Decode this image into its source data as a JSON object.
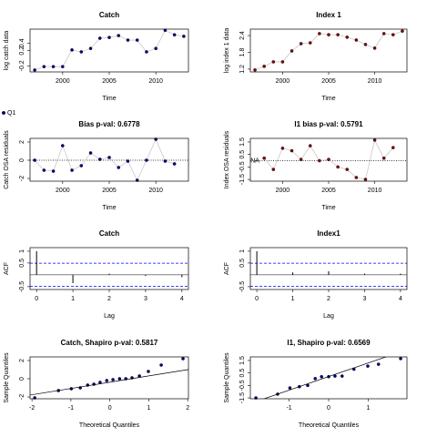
{
  "chart_data": [
    {
      "type": "line",
      "title": "Catch",
      "x_label": "Time",
      "y_label": "log catch data",
      "x": [
        1997,
        1998,
        1999,
        2000,
        2001,
        2002,
        2003,
        2004,
        2005,
        2006,
        2007,
        2008,
        2009,
        2010,
        2011,
        2012,
        2013
      ],
      "series": [
        {
          "color": "#00008b",
          "values": [
            -0.31,
            -0.22,
            -0.22,
            -0.22,
            0.22,
            0.17,
            0.26,
            0.53,
            0.55,
            0.6,
            0.48,
            0.48,
            0.17,
            0.26,
            0.74,
            0.62,
            0.58
          ]
        }
      ],
      "line_color": "#c8c8c8",
      "xlim": [
        1996.5,
        2013.5
      ],
      "ylim": [
        -0.36,
        0.77
      ],
      "xticks": [
        2000,
        2005,
        2010
      ],
      "yticks": [
        -0.2,
        0.2,
        0.4
      ]
    },
    {
      "type": "line",
      "title": "Index 1",
      "x_label": "Time",
      "y_label": "log index 1 data",
      "x": [
        1997,
        1998,
        1999,
        2000,
        2001,
        2002,
        2003,
        2004,
        2005,
        2006,
        2007,
        2008,
        2009,
        2010,
        2011,
        2012,
        2013
      ],
      "series": [
        {
          "color": "#8b0000",
          "values": [
            1.17,
            1.3,
            1.46,
            1.46,
            1.85,
            2.11,
            2.14,
            2.47,
            2.43,
            2.43,
            2.34,
            2.24,
            2.08,
            1.95,
            2.47,
            2.43,
            2.56
          ]
        }
      ],
      "line_color": "#c8c8c8",
      "xlim": [
        1996.5,
        2013.5
      ],
      "ylim": [
        1.1,
        2.63
      ],
      "xticks": [
        2000,
        2005,
        2010
      ],
      "yticks": [
        1.2,
        1.8,
        2.4
      ]
    },
    {
      "type": "line",
      "title": "Bias p-val: 0.6778",
      "title_color": "#228b22",
      "x_label": "Time",
      "y_label": "Catch OSA residuals",
      "x": [
        1997,
        1998,
        1999,
        2000,
        2001,
        2002,
        2003,
        2004,
        2005,
        2006,
        2007,
        2008,
        2009,
        2010,
        2011,
        2012
      ],
      "series": [
        {
          "name": "Q1",
          "color": "#00008b",
          "values": [
            0,
            -1.1,
            -1.2,
            1.6,
            -1.1,
            -0.6,
            0.8,
            0.1,
            0.3,
            -0.8,
            -0.1,
            -2.2,
            0,
            2.3,
            -0.1,
            -0.4
          ]
        }
      ],
      "legend": "top-left",
      "line_color": "#c8c8c8",
      "hlines": [
        0
      ],
      "hline_style": "dotted",
      "xlim": [
        1996.5,
        2013.5
      ],
      "ylim": [
        -2.3,
        2.4
      ],
      "xticks": [
        2000,
        2005,
        2010
      ],
      "yticks": [
        -2,
        0,
        2
      ]
    },
    {
      "type": "line",
      "title": "I1 bias p-val: 0.5791",
      "title_color": "#228b22",
      "x_label": "Time",
      "y_label": "Index OSA residuals",
      "x": [
        1998,
        1999,
        2000,
        2001,
        2002,
        2003,
        2004,
        2005,
        2006,
        2007,
        2008,
        2009,
        2010,
        2011,
        2012
      ],
      "series": [
        {
          "color": "#8b0000",
          "values": [
            0.2,
            -0.7,
            1.0,
            0.8,
            0.1,
            1.2,
            0.0,
            0.1,
            -0.5,
            -0.7,
            -1.35,
            -1.5,
            1.65,
            0.2,
            1.05
          ]
        }
      ],
      "annotations": [
        {
          "text": "NA",
          "x": 1997,
          "y": 0
        }
      ],
      "line_color": "#c8c8c8",
      "hlines": [
        0
      ],
      "hline_style": "dotted",
      "xlim": [
        1996.5,
        2013.5
      ],
      "ylim": [
        -1.64,
        1.79
      ],
      "xticks": [
        2000,
        2005,
        2010
      ],
      "yticks": [
        -1.5,
        -0.5,
        0.5,
        1.5
      ]
    },
    {
      "type": "bar",
      "title": "Catch",
      "title_color": "#228b22",
      "x_label": "Lag",
      "y_label": "ACF",
      "x": [
        0,
        1,
        2,
        3,
        4
      ],
      "series": [
        {
          "color": "#000000",
          "values": [
            1,
            -0.35,
            0.05,
            -0.05,
            -0.1
          ]
        }
      ],
      "hlines": [
        0.49,
        -0.49
      ],
      "hline_style": "dashed",
      "hline_color": "#0000ff",
      "xlim": [
        -0.18,
        4.18
      ],
      "ylim": [
        -0.62,
        1.15
      ],
      "xticks": [
        0,
        1,
        2,
        3,
        4
      ],
      "yticks": [
        -0.5,
        0.5,
        1
      ]
    },
    {
      "type": "bar",
      "title": "Index1",
      "title_color": "#228b22",
      "x_label": "Lag",
      "y_label": "ACF",
      "x": [
        0,
        1,
        2,
        3,
        4
      ],
      "series": [
        {
          "color": "#000000",
          "values": [
            1,
            0.1,
            0.15,
            0.05,
            0.05
          ]
        }
      ],
      "hlines": [
        0.49,
        -0.49
      ],
      "hline_style": "dashed",
      "hline_color": "#0000ff",
      "xlim": [
        -0.18,
        4.18
      ],
      "ylim": [
        -0.62,
        1.15
      ],
      "xticks": [
        0,
        1,
        2,
        3,
        4
      ],
      "yticks": [
        -0.5,
        0.5,
        1
      ]
    },
    {
      "type": "scatter",
      "title": "Catch, Shapiro p-val: 0.5817",
      "title_color": "#228b22",
      "x_label": "Theoretical Quantiles",
      "y_label": "Sample Quantiles",
      "x": [
        -1.93,
        -1.32,
        -0.99,
        -0.76,
        -0.57,
        -0.41,
        -0.25,
        -0.08,
        0.08,
        0.25,
        0.41,
        0.57,
        0.76,
        0.99,
        1.32,
        1.88
      ],
      "series": [
        {
          "color": "#00008b",
          "values": [
            -2.1,
            -1.3,
            -1.1,
            -1.0,
            -0.7,
            -0.6,
            -0.4,
            -0.2,
            -0.1,
            0.0,
            0.0,
            0.1,
            0.3,
            0.8,
            1.5,
            2.2
          ]
        }
      ],
      "fit_line": {
        "intercept": -0.38,
        "slope": 0.69
      },
      "xlim": [
        -2.05,
        2.02
      ],
      "ylim": [
        -2.2,
        2.4
      ],
      "xticks": [
        -2,
        -1,
        0,
        1,
        2
      ],
      "yticks": [
        -2,
        0,
        2
      ]
    },
    {
      "type": "scatter",
      "title": "I1, Shapiro p-val: 0.6569",
      "title_color": "#228b22",
      "x_label": "Theoretical Quantiles",
      "y_label": "Sample Quantiles",
      "x": [
        -1.84,
        -1.29,
        -0.98,
        -0.74,
        -0.53,
        -0.34,
        -0.18,
        0,
        0.16,
        0.34,
        0.64,
        0.99,
        1.26,
        1.82
      ],
      "series": [
        {
          "color": "#00008b",
          "values": [
            -1.5,
            -1.2,
            -0.7,
            -0.6,
            -0.5,
            0.05,
            0.2,
            0.2,
            0.25,
            0.25,
            0.8,
            1.05,
            1.2,
            1.65
          ]
        }
      ],
      "fit_line": {
        "intercept": 0.21,
        "slope": 1.09
      },
      "xlim": [
        -1.98,
        1.98
      ],
      "ylim": [
        -1.57,
        1.79
      ],
      "xticks": [
        -1,
        0,
        1
      ],
      "yticks": [
        -1.5,
        -0.5,
        0.5,
        1.5
      ]
    }
  ]
}
